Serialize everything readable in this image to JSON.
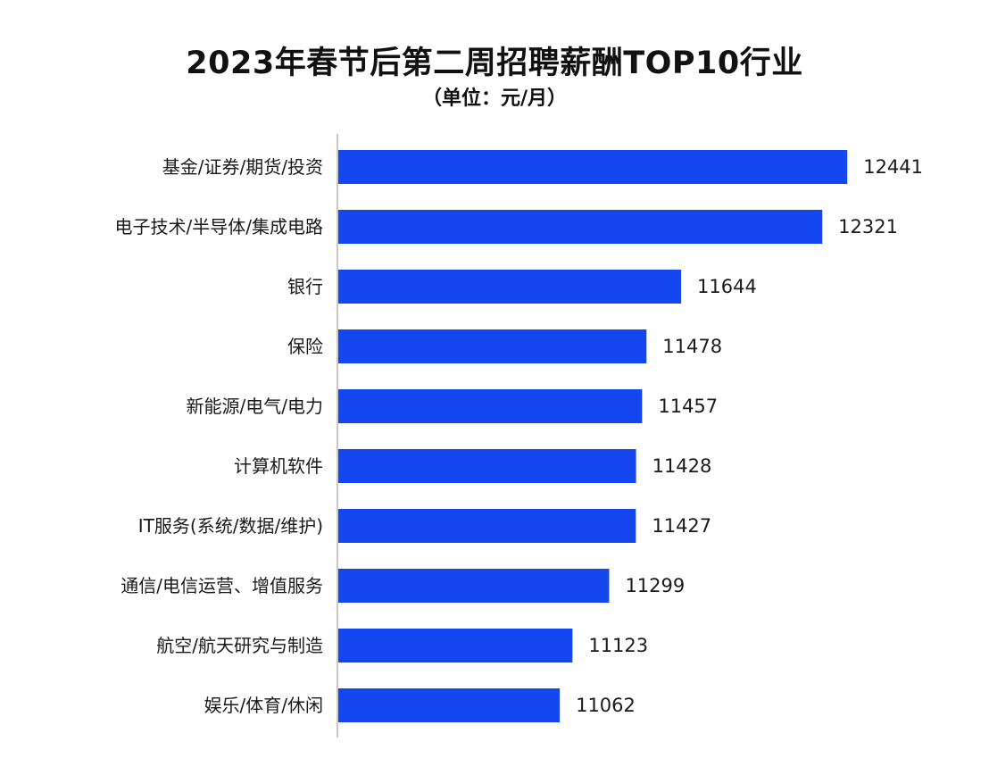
{
  "chart_data": {
    "type": "bar",
    "orientation": "horizontal",
    "title": "2023年春节后第二周招聘薪酬TOP10行业",
    "subtitle": "（单位：元/月）",
    "categories": [
      "基金/证券/期货/投资",
      "电子技术/半导体/集成电路",
      "银行",
      "保险",
      "新能源/电气/电力",
      "计算机软件",
      "IT服务(系统/数据/维护)",
      "通信/电信运营、增值服务",
      "航空/航天研究与制造",
      "娱乐/体育/休闲"
    ],
    "values": [
      12441,
      12321,
      11644,
      11478,
      11457,
      11428,
      11427,
      11299,
      11123,
      11062
    ],
    "bar_color": "#1447f0",
    "axis_color": "#c8c8c8",
    "xlim": [
      10000,
      12500
    ],
    "grid": false,
    "legend": "none"
  }
}
